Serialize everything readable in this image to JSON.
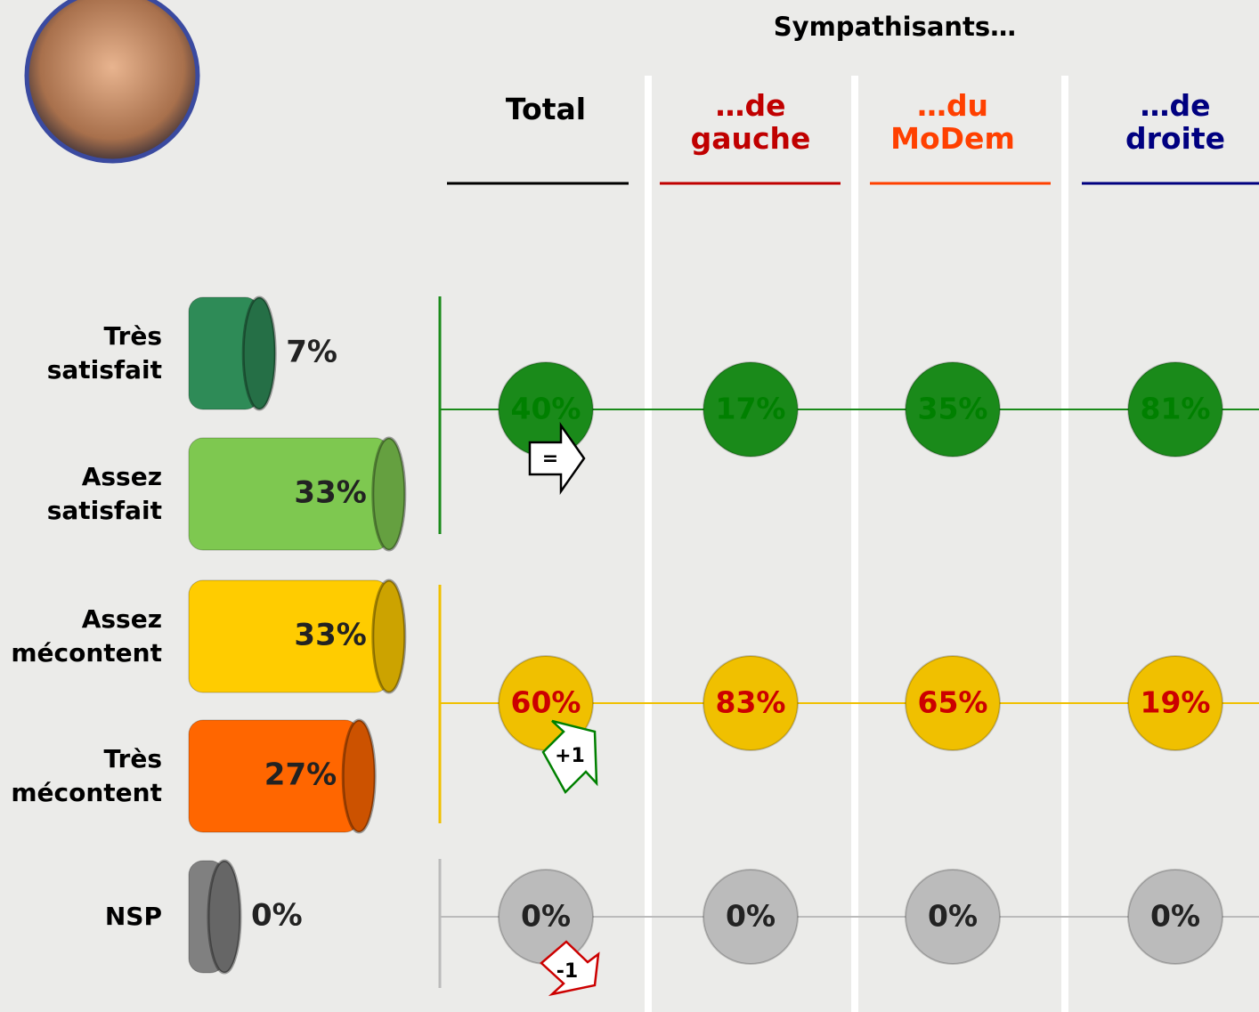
{
  "header": {
    "title": "Sympathisants…",
    "columns": [
      {
        "label": "Total",
        "color": "#000000"
      },
      {
        "label": "…de gauche",
        "color": "#c00000"
      },
      {
        "label": "…du MoDem",
        "color": "#ff4000"
      },
      {
        "label": "…de droite",
        "color": "#000080"
      }
    ]
  },
  "chart_data": {
    "type": "bar",
    "categories": [
      "Très satisfait",
      "Assez satisfait",
      "Assez mécontent",
      "Très mécontent",
      "NSP"
    ],
    "values": [
      7,
      33,
      33,
      27,
      0
    ],
    "value_labels": [
      "7%",
      "33%",
      "33%",
      "27%",
      "0%"
    ],
    "colors": [
      "#2e8b57",
      "#7ec850",
      "#ffcc00",
      "#ff6600",
      "#808080"
    ]
  },
  "groups": [
    {
      "color": "#1a8a1a",
      "text_color": "#008000",
      "values": [
        40,
        17,
        35,
        81
      ],
      "value_labels": [
        "40%",
        "17%",
        "35%",
        "81%"
      ],
      "change": "=",
      "change_color": "#000000"
    },
    {
      "color": "#f0c000",
      "text_color": "#cc0000",
      "values": [
        60,
        83,
        65,
        19
      ],
      "value_labels": [
        "60%",
        "83%",
        "65%",
        "19%"
      ],
      "change": "+1",
      "change_color": "#008000"
    },
    {
      "color": "#bbbbbb",
      "text_color": "#222222",
      "values": [
        0,
        0,
        0,
        0
      ],
      "value_labels": [
        "0%",
        "0%",
        "0%",
        "0%"
      ],
      "change": "-1",
      "change_color": "#cc0000"
    }
  ]
}
